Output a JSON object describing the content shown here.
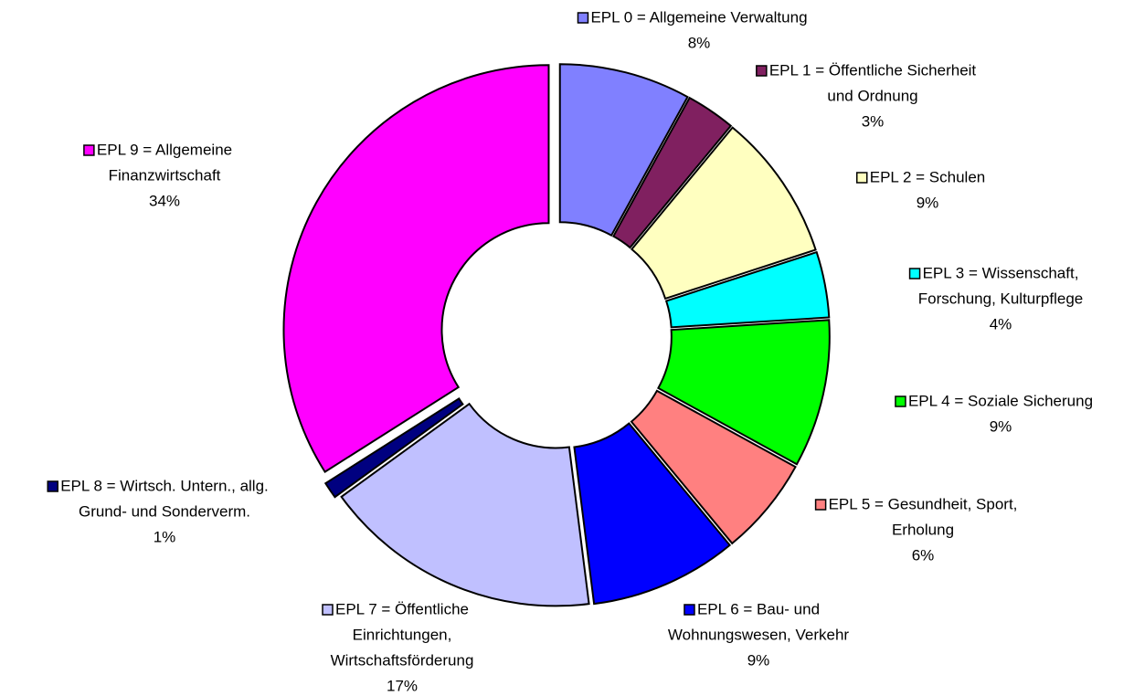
{
  "chart_data": {
    "type": "donut",
    "categories": [
      [
        "EPL 0 = Allgemeine Verwaltung"
      ],
      [
        "EPL 1 = Öffentliche Sicherheit",
        "und Ordnung"
      ],
      [
        "EPL 2 = Schulen"
      ],
      [
        "EPL 3 = Wissenschaft,",
        "Forschung, Kulturpflege"
      ],
      [
        "EPL 4 = Soziale Sicherung"
      ],
      [
        "EPL 5 = Gesundheit, Sport,",
        "Erholung"
      ],
      [
        "EPL 6 = Bau- und",
        "Wohnungswesen, Verkehr"
      ],
      [
        "EPL 7 = Öffentliche",
        "Einrichtungen,",
        "Wirtschaftsförderung"
      ],
      [
        "EPL 8 = Wirtsch. Untern., allg.",
        "Grund- und Sonderverm."
      ],
      [
        "EPL 9 = Allgemeine",
        "Finanzwirtschaft"
      ]
    ],
    "values": [
      8,
      3,
      9,
      4,
      9,
      6,
      9,
      17,
      1,
      34
    ],
    "value_labels": [
      "8%",
      "3%",
      "9%",
      "4%",
      "9%",
      "6%",
      "9%",
      "17%",
      "1%",
      "34%"
    ],
    "colors": [
      "#8080ff",
      "#802060",
      "#ffffc0",
      "#00ffff",
      "#00ff00",
      "#ff8080",
      "#0000ff",
      "#c0c0ff",
      "#000080",
      "#ff00ff"
    ]
  }
}
